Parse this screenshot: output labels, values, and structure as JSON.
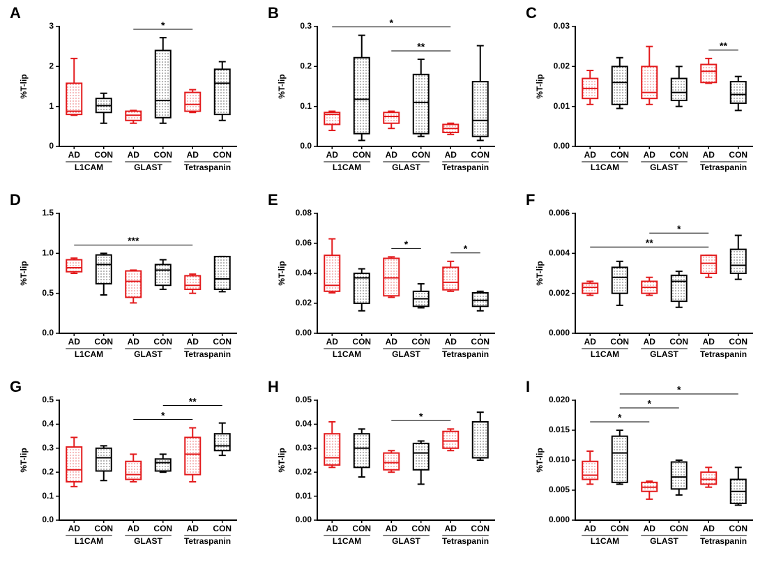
{
  "chart_data": [
    {
      "type": "box",
      "panel": "A",
      "ylabel": "%T-lip",
      "categories": [
        "AD",
        "CON",
        "AD",
        "CON",
        "AD",
        "CON"
      ],
      "groups": [
        "L1CAM",
        "GLAST",
        "Tetraspanin"
      ],
      "colors": [
        "#e31a1c",
        "#000000",
        "#e31a1c",
        "#000000",
        "#e31a1c",
        "#000000"
      ],
      "min": [
        0.78,
        0.58,
        0.58,
        0.58,
        0.85,
        0.65
      ],
      "q1": [
        0.8,
        0.85,
        0.65,
        0.72,
        0.88,
        0.8
      ],
      "median": [
        0.88,
        1.02,
        0.78,
        1.15,
        1.05,
        1.58
      ],
      "q3": [
        1.58,
        1.2,
        0.88,
        2.4,
        1.35,
        1.93
      ],
      "max": [
        2.2,
        1.33,
        0.9,
        2.72,
        1.42,
        2.12
      ],
      "ylim": [
        0,
        3
      ],
      "yticks": [
        0,
        1,
        2,
        3
      ],
      "significance": [
        {
          "label": "*",
          "from": 2,
          "to": 4
        }
      ]
    },
    {
      "type": "box",
      "panel": "B",
      "ylabel": "%T-lip",
      "categories": [
        "AD",
        "CON",
        "AD",
        "CON",
        "AD",
        "CON"
      ],
      "groups": [
        "L1CAM",
        "GLAST",
        "Tetraspanin"
      ],
      "colors": [
        "#e31a1c",
        "#000000",
        "#e31a1c",
        "#000000",
        "#e31a1c",
        "#000000"
      ],
      "min": [
        0.04,
        0.015,
        0.045,
        0.025,
        0.03,
        0.015
      ],
      "q1": [
        0.055,
        0.032,
        0.058,
        0.032,
        0.035,
        0.025
      ],
      "median": [
        0.08,
        0.118,
        0.075,
        0.11,
        0.045,
        0.065
      ],
      "q3": [
        0.085,
        0.222,
        0.085,
        0.18,
        0.055,
        0.162
      ],
      "max": [
        0.088,
        0.278,
        0.088,
        0.218,
        0.058,
        0.252
      ],
      "ylim": [
        0,
        0.3
      ],
      "yticks": [
        {
          "value": 0,
          "label": "0.0"
        },
        0.1,
        0.2,
        0.3
      ],
      "significance": [
        {
          "label": "*",
          "from": 0,
          "to": 4
        },
        {
          "label": "**",
          "from": 2,
          "to": 4
        }
      ]
    },
    {
      "type": "box",
      "panel": "C",
      "ylabel": "%T-lip",
      "categories": [
        "AD",
        "CON",
        "AD",
        "CON",
        "AD",
        "CON"
      ],
      "groups": [
        "L1CAM",
        "GLAST",
        "Tetraspanin"
      ],
      "colors": [
        "#e31a1c",
        "#000000",
        "#e31a1c",
        "#000000",
        "#e31a1c",
        "#000000"
      ],
      "min": [
        0.0105,
        0.0095,
        0.0105,
        0.01,
        0.0158,
        0.009
      ],
      "q1": [
        0.012,
        0.0105,
        0.012,
        0.0115,
        0.016,
        0.0108
      ],
      "median": [
        0.0145,
        0.016,
        0.0135,
        0.0135,
        0.0188,
        0.013
      ],
      "q3": [
        0.017,
        0.02,
        0.02,
        0.017,
        0.0205,
        0.0162
      ],
      "max": [
        0.019,
        0.0222,
        0.025,
        0.02,
        0.022,
        0.0175
      ],
      "ylim": [
        0,
        0.03
      ],
      "yticks": [
        {
          "value": 0,
          "label": "0.00"
        },
        0.01,
        0.02,
        0.03
      ],
      "significance": [
        {
          "label": "**",
          "from": 4,
          "to": 5
        }
      ]
    },
    {
      "type": "box",
      "panel": "D",
      "ylabel": "%T-lip",
      "categories": [
        "AD",
        "CON",
        "AD",
        "CON",
        "AD",
        "CON"
      ],
      "groups": [
        "L1CAM",
        "GLAST",
        "Tetraspanin"
      ],
      "colors": [
        "#e31a1c",
        "#000000",
        "#e31a1c",
        "#000000",
        "#e31a1c",
        "#000000"
      ],
      "min": [
        0.75,
        0.48,
        0.38,
        0.55,
        0.5,
        0.52
      ],
      "q1": [
        0.77,
        0.62,
        0.45,
        0.6,
        0.55,
        0.55
      ],
      "median": [
        0.82,
        0.86,
        0.65,
        0.79,
        0.6,
        0.68
      ],
      "q3": [
        0.92,
        0.98,
        0.78,
        0.86,
        0.72,
        0.96
      ],
      "max": [
        0.94,
        1.0,
        0.79,
        0.92,
        0.74,
        0.96
      ],
      "ylim": [
        0,
        1.5
      ],
      "yticks": [
        {
          "value": 0,
          "label": "0.0"
        },
        0.5,
        {
          "value": 1,
          "label": "1.0"
        },
        1.5
      ],
      "significance": [
        {
          "label": "***",
          "from": 0,
          "to": 4
        }
      ]
    },
    {
      "type": "box",
      "panel": "E",
      "ylabel": "%T-lip",
      "categories": [
        "AD",
        "CON",
        "AD",
        "CON",
        "AD",
        "CON"
      ],
      "groups": [
        "L1CAM",
        "GLAST",
        "Tetraspanin"
      ],
      "colors": [
        "#e31a1c",
        "#000000",
        "#e31a1c",
        "#000000",
        "#e31a1c",
        "#000000"
      ],
      "min": [
        0.027,
        0.015,
        0.024,
        0.017,
        0.028,
        0.015
      ],
      "q1": [
        0.028,
        0.02,
        0.025,
        0.018,
        0.029,
        0.018
      ],
      "median": [
        0.032,
        0.037,
        0.037,
        0.023,
        0.034,
        0.022
      ],
      "q3": [
        0.052,
        0.04,
        0.05,
        0.028,
        0.044,
        0.027
      ],
      "max": [
        0.063,
        0.043,
        0.051,
        0.033,
        0.048,
        0.028
      ],
      "ylim": [
        0,
        0.08
      ],
      "yticks": [
        {
          "value": 0,
          "label": "0.00"
        },
        0.02,
        0.04,
        0.06,
        0.08
      ],
      "significance": [
        {
          "label": "*",
          "from": 2,
          "to": 3
        },
        {
          "label": "*",
          "from": 4,
          "to": 5
        }
      ]
    },
    {
      "type": "box",
      "panel": "F",
      "ylabel": "%T-lip",
      "categories": [
        "AD",
        "CON",
        "AD",
        "CON",
        "AD",
        "CON"
      ],
      "groups": [
        "L1CAM",
        "GLAST",
        "Tetraspanin"
      ],
      "colors": [
        "#e31a1c",
        "#000000",
        "#e31a1c",
        "#000000",
        "#e31a1c",
        "#000000"
      ],
      "min": [
        0.0019,
        0.0014,
        0.0019,
        0.0013,
        0.0028,
        0.0027
      ],
      "q1": [
        0.002,
        0.002,
        0.002,
        0.0016,
        0.003,
        0.003
      ],
      "median": [
        0.0023,
        0.0028,
        0.0023,
        0.0026,
        0.0035,
        0.0034
      ],
      "q3": [
        0.0025,
        0.0033,
        0.0026,
        0.0029,
        0.0039,
        0.0042
      ],
      "max": [
        0.0026,
        0.0036,
        0.0028,
        0.0031,
        0.0039,
        0.0049
      ],
      "ylim": [
        0,
        0.006
      ],
      "yticks": [
        {
          "value": 0,
          "label": "0.000"
        },
        0.002,
        0.004,
        0.006
      ],
      "significance": [
        {
          "label": "**",
          "from": 0,
          "to": 4
        },
        {
          "label": "*",
          "from": 2,
          "to": 4
        }
      ]
    },
    {
      "type": "box",
      "panel": "G",
      "ylabel": "%T-lip",
      "categories": [
        "AD",
        "CON",
        "AD",
        "CON",
        "AD",
        "CON"
      ],
      "groups": [
        "L1CAM",
        "GLAST",
        "Tetraspanin"
      ],
      "colors": [
        "#e31a1c",
        "#000000",
        "#e31a1c",
        "#000000",
        "#e31a1c",
        "#000000"
      ],
      "min": [
        0.14,
        0.165,
        0.16,
        0.2,
        0.16,
        0.27
      ],
      "q1": [
        0.16,
        0.205,
        0.17,
        0.205,
        0.19,
        0.29
      ],
      "median": [
        0.21,
        0.26,
        0.19,
        0.24,
        0.275,
        0.31
      ],
      "q3": [
        0.305,
        0.3,
        0.245,
        0.255,
        0.345,
        0.36
      ],
      "max": [
        0.345,
        0.31,
        0.275,
        0.275,
        0.385,
        0.405
      ],
      "ylim": [
        0,
        0.5
      ],
      "yticks": [
        {
          "value": 0,
          "label": "0.0"
        },
        0.1,
        0.2,
        0.3,
        0.4,
        0.5
      ],
      "significance": [
        {
          "label": "*",
          "from": 2,
          "to": 4
        },
        {
          "label": "**",
          "from": 3,
          "to": 5
        }
      ]
    },
    {
      "type": "box",
      "panel": "H",
      "ylabel": "%T-lip",
      "categories": [
        "AD",
        "CON",
        "AD",
        "CON",
        "AD",
        "CON"
      ],
      "groups": [
        "L1CAM",
        "GLAST",
        "Tetraspanin"
      ],
      "colors": [
        "#e31a1c",
        "#000000",
        "#e31a1c",
        "#000000",
        "#e31a1c",
        "#000000"
      ],
      "min": [
        0.022,
        0.018,
        0.02,
        0.015,
        0.029,
        0.025
      ],
      "q1": [
        0.023,
        0.022,
        0.021,
        0.021,
        0.03,
        0.026
      ],
      "median": [
        0.026,
        0.03,
        0.024,
        0.028,
        0.033,
        0.026
      ],
      "q3": [
        0.036,
        0.036,
        0.028,
        0.032,
        0.037,
        0.041
      ],
      "max": [
        0.041,
        0.038,
        0.029,
        0.033,
        0.038,
        0.045
      ],
      "ylim": [
        0,
        0.05
      ],
      "yticks": [
        {
          "value": 0,
          "label": "0.00"
        },
        0.01,
        0.02,
        0.03,
        0.04,
        0.05
      ],
      "significance": [
        {
          "label": "*",
          "from": 2,
          "to": 4
        }
      ]
    },
    {
      "type": "box",
      "panel": "I",
      "ylabel": "%T-lip",
      "categories": [
        "AD",
        "CON",
        "AD",
        "CON",
        "AD",
        "CON"
      ],
      "groups": [
        "L1CAM",
        "GLAST",
        "Tetraspanin"
      ],
      "colors": [
        "#e31a1c",
        "#000000",
        "#e31a1c",
        "#000000",
        "#e31a1c",
        "#000000"
      ],
      "min": [
        0.006,
        0.006,
        0.0035,
        0.0042,
        0.0055,
        0.0025
      ],
      "q1": [
        0.0068,
        0.0063,
        0.0048,
        0.0052,
        0.006,
        0.0028
      ],
      "median": [
        0.0075,
        0.0112,
        0.0055,
        0.0072,
        0.0068,
        0.0048
      ],
      "q3": [
        0.0098,
        0.014,
        0.0063,
        0.0097,
        0.008,
        0.0068
      ],
      "max": [
        0.0115,
        0.015,
        0.0065,
        0.01,
        0.0088,
        0.0088
      ],
      "ylim": [
        0,
        0.02
      ],
      "yticks": [
        {
          "value": 0,
          "label": "0.000"
        },
        0.005,
        {
          "value": 0.01,
          "label": "0.010"
        },
        0.015,
        {
          "value": 0.02,
          "label": "0.020"
        }
      ],
      "significance": [
        {
          "label": "*",
          "from": 0,
          "to": 2
        },
        {
          "label": "*",
          "from": 1,
          "to": 3
        },
        {
          "label": "*",
          "from": 1,
          "to": 5
        }
      ]
    }
  ]
}
